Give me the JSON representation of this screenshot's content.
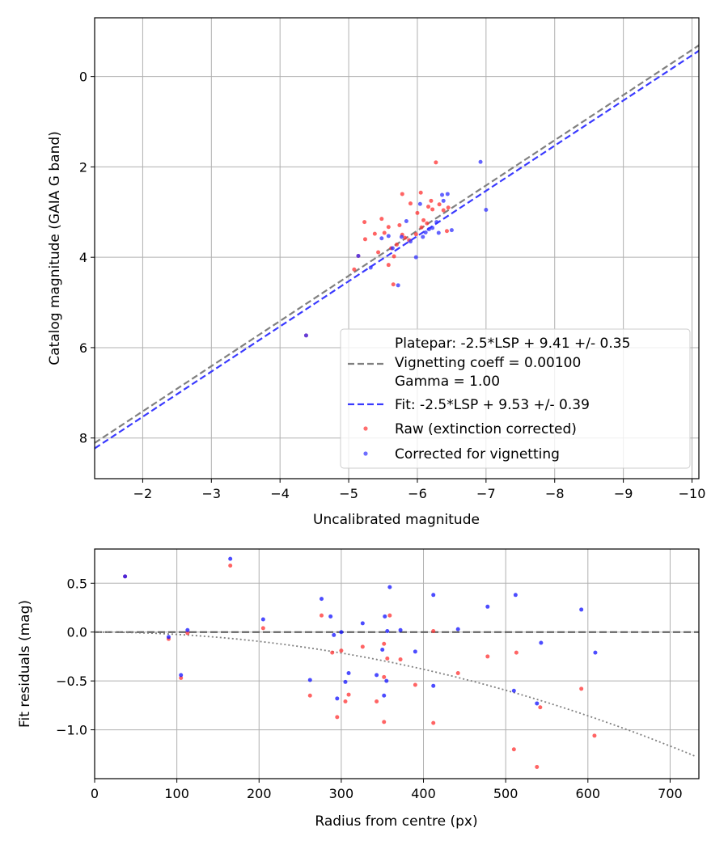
{
  "chart_data": [
    {
      "type": "scatter",
      "xlabel": "Uncalibrated magnitude",
      "ylabel": "Catalog magnitude (GAIA G band)",
      "xlim": [
        -1.3,
        -10.1
      ],
      "ylim": [
        8.9,
        -1.3
      ],
      "x_inverted": true,
      "y_inverted": true,
      "grid": true,
      "xticks": [
        -2,
        -3,
        -4,
        -5,
        -6,
        -7,
        -8,
        -9,
        -10
      ],
      "xtick_labels": [
        "−2",
        "−3",
        "−4",
        "−5",
        "−6",
        "−7",
        "−8",
        "−9",
        "−10"
      ],
      "yticks": [
        0,
        2,
        4,
        6,
        8
      ],
      "ytick_labels": [
        "0",
        "2",
        "4",
        "6",
        "8"
      ],
      "legend_position": "lower-right",
      "legend": [
        "Platepar: -2.5*LSP + 9.41 +/- 0.35",
        "Vignetting coeff = 0.00100",
        "Gamma = 1.00",
        "Fit: -2.5*LSP + 9.53 +/- 0.39",
        "Raw (extinction corrected)",
        "Corrected for vignetting"
      ],
      "lines": [
        {
          "label": "Platepar",
          "slope": 1.0,
          "intercept": 9.41,
          "color": "#808080",
          "dash": true
        },
        {
          "label": "Fit",
          "slope": 1.0,
          "intercept": 9.53,
          "color": "#3a3aff",
          "dash": true
        }
      ],
      "series": [
        {
          "name": "Raw (extinction corrected)",
          "color": "#ff3030",
          "points": [
            [
              -4.38,
              5.73
            ],
            [
              -5.08,
              4.27
            ],
            [
              -5.14,
              3.97
            ],
            [
              -5.24,
              3.6
            ],
            [
              -5.23,
              3.22
            ],
            [
              -5.38,
              3.48
            ],
            [
              -5.48,
              3.15
            ],
            [
              -5.43,
              3.89
            ],
            [
              -5.58,
              3.33
            ],
            [
              -5.52,
              3.46
            ],
            [
              -5.58,
              4.17
            ],
            [
              -5.62,
              3.8
            ],
            [
              -5.65,
              4.6
            ],
            [
              -5.66,
              3.98
            ],
            [
              -5.7,
              3.72
            ],
            [
              -5.74,
              3.29
            ],
            [
              -5.78,
              2.6
            ],
            [
              -5.78,
              3.5
            ],
            [
              -5.82,
              3.57
            ],
            [
              -5.88,
              3.62
            ],
            [
              -5.9,
              2.81
            ],
            [
              -5.98,
              3.49
            ],
            [
              -6.05,
              2.57
            ],
            [
              -6.06,
              3.34
            ],
            [
              -6.09,
              3.18
            ],
            [
              -6.14,
              3.25
            ],
            [
              -6.16,
              2.88
            ],
            [
              -6.2,
              2.75
            ],
            [
              -6.22,
              2.94
            ],
            [
              -6.27,
              1.9
            ],
            [
              -6.32,
              2.83
            ],
            [
              -6.38,
              2.96
            ],
            [
              -6.45,
              2.9
            ],
            [
              -6.43,
              3.42
            ],
            [
              -6.0,
              3.02
            ]
          ]
        },
        {
          "name": "Corrected for vignetting",
          "color": "#3030ff",
          "points": [
            [
              -4.38,
              5.73
            ],
            [
              -5.14,
              3.97
            ],
            [
              -5.32,
              4.23
            ],
            [
              -5.48,
              3.58
            ],
            [
              -5.58,
              3.53
            ],
            [
              -5.64,
              3.8
            ],
            [
              -5.72,
              4.62
            ],
            [
              -5.77,
              3.55
            ],
            [
              -5.84,
              3.2
            ],
            [
              -5.9,
              3.65
            ],
            [
              -5.98,
              4.0
            ],
            [
              -6.04,
              2.82
            ],
            [
              -6.08,
              3.55
            ],
            [
              -6.12,
              3.45
            ],
            [
              -6.17,
              3.38
            ],
            [
              -6.22,
              3.35
            ],
            [
              -6.28,
              3.22
            ],
            [
              -6.31,
              3.46
            ],
            [
              -6.36,
              2.62
            ],
            [
              -6.38,
              2.75
            ],
            [
              -6.44,
              2.6
            ],
            [
              -6.5,
              3.4
            ],
            [
              -6.92,
              1.89
            ],
            [
              -7.0,
              2.95
            ]
          ]
        }
      ]
    },
    {
      "type": "scatter",
      "xlabel": "Radius from centre (px)",
      "ylabel": "Fit residuals (mag)",
      "xlim": [
        0,
        735
      ],
      "ylim": [
        -1.5,
        0.85
      ],
      "grid": true,
      "xticks": [
        0,
        100,
        200,
        300,
        400,
        500,
        600,
        700
      ],
      "xtick_labels": [
        "0",
        "100",
        "200",
        "300",
        "400",
        "500",
        "600",
        "700"
      ],
      "yticks": [
        0.5,
        0.0,
        -0.5,
        -1.0
      ],
      "ytick_labels": [
        "0.5",
        "0.0",
        "−0.5",
        "−1.0"
      ],
      "lines": [
        {
          "label": "zero",
          "y": 0.0,
          "color": "#555555",
          "dash": true
        },
        {
          "label": "vignetting curve",
          "coeff": 0.001,
          "color": "#808080",
          "dotted": true
        }
      ],
      "series": [
        {
          "name": "Raw (extinction corrected)",
          "color": "#ff3030",
          "points": [
            [
              37,
              0.57
            ],
            [
              90,
              -0.07
            ],
            [
              105,
              -0.47
            ],
            [
              113,
              -0.01
            ],
            [
              165,
              0.68
            ],
            [
              205,
              0.04
            ],
            [
              262,
              -0.65
            ],
            [
              276,
              0.17
            ],
            [
              289,
              -0.21
            ],
            [
              295,
              -0.87
            ],
            [
              300,
              -0.19
            ],
            [
              305,
              -0.71
            ],
            [
              309,
              -0.64
            ],
            [
              326,
              -0.15
            ],
            [
              343,
              -0.71
            ],
            [
              352,
              -0.92
            ],
            [
              352,
              -0.12
            ],
            [
              356,
              -0.27
            ],
            [
              359,
              0.17
            ],
            [
              372,
              -0.28
            ],
            [
              390,
              -0.54
            ],
            [
              412,
              -0.93
            ],
            [
              412,
              0.01
            ],
            [
              442,
              -0.42
            ],
            [
              478,
              -0.25
            ],
            [
              510,
              -1.2
            ],
            [
              513,
              -0.21
            ],
            [
              538,
              -1.38
            ],
            [
              542,
              -0.77
            ],
            [
              592,
              -0.58
            ],
            [
              608,
              -1.06
            ],
            [
              352,
              -0.46
            ]
          ]
        },
        {
          "name": "Corrected for vignetting",
          "color": "#1010ff",
          "points": [
            [
              37,
              0.57
            ],
            [
              90,
              -0.05
            ],
            [
              105,
              -0.44
            ],
            [
              113,
              0.02
            ],
            [
              165,
              0.75
            ],
            [
              205,
              0.13
            ],
            [
              262,
              -0.49
            ],
            [
              276,
              0.34
            ],
            [
              287,
              0.16
            ],
            [
              291,
              -0.03
            ],
            [
              295,
              -0.68
            ],
            [
              300,
              0.0
            ],
            [
              305,
              -0.51
            ],
            [
              309,
              -0.42
            ],
            [
              326,
              0.09
            ],
            [
              343,
              -0.44
            ],
            [
              350,
              -0.18
            ],
            [
              352,
              -0.65
            ],
            [
              353,
              0.16
            ],
            [
              355,
              -0.5
            ],
            [
              356,
              0.01
            ],
            [
              359,
              0.46
            ],
            [
              372,
              0.02
            ],
            [
              390,
              -0.2
            ],
            [
              412,
              0.38
            ],
            [
              412,
              -0.55
            ],
            [
              442,
              0.03
            ],
            [
              478,
              0.26
            ],
            [
              510,
              -0.6
            ],
            [
              512,
              0.38
            ],
            [
              538,
              -0.73
            ],
            [
              543,
              -0.11
            ],
            [
              592,
              0.23
            ],
            [
              609,
              -0.21
            ]
          ]
        }
      ]
    }
  ]
}
